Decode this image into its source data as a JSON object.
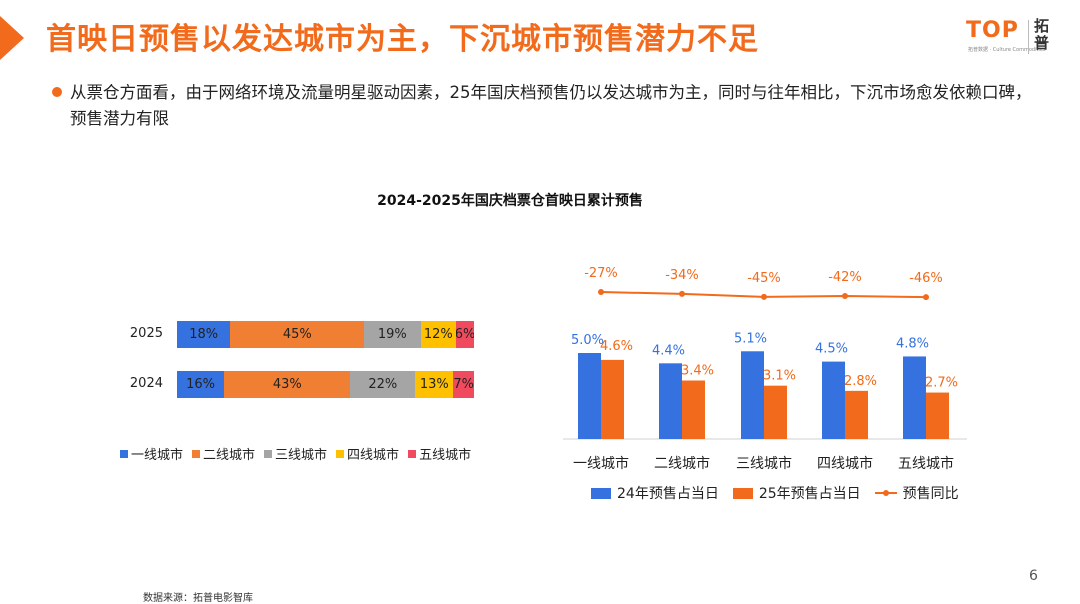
{
  "header": {
    "title": "首映日预售以发达城市为主，下沉城市预售潜力不足",
    "logo_text": "TOP",
    "logo_sub": "拓普数据 · Culture Commodities",
    "logo_cn": "拓普"
  },
  "bullet": {
    "text": "从票仓方面看，由于网络环境及流量明星驱动因素，25年国庆档预售仍以发达城市为主，同时与往年相比，下沉市场愈发依赖口碑，预售潜力有限"
  },
  "chart_title": "2024-2025年国庆档票仓首映日累计预售",
  "chart_data": [
    {
      "type": "bar",
      "orientation": "horizontal",
      "stacked": true,
      "percent": true,
      "categories": [
        "2025",
        "2024"
      ],
      "series": [
        {
          "name": "一线城市",
          "color": "#3572e0",
          "values": [
            18,
            16
          ]
        },
        {
          "name": "二线城市",
          "color": "#f07f34",
          "values": [
            45,
            43
          ]
        },
        {
          "name": "三线城市",
          "color": "#a5a5a5",
          "values": [
            19,
            22
          ]
        },
        {
          "name": "四线城市",
          "color": "#ffc000",
          "values": [
            12,
            13
          ]
        },
        {
          "name": "五线城市",
          "color": "#f04a5e",
          "values": [
            6,
            7
          ]
        }
      ],
      "legend_position": "bottom"
    },
    {
      "type": "bar",
      "categories": [
        "一线城市",
        "二线城市",
        "三线城市",
        "四线城市",
        "五线城市"
      ],
      "series": [
        {
          "name": "24年预售占当日",
          "color": "#3572e0",
          "values": [
            5.0,
            4.4,
            5.1,
            4.5,
            4.8
          ],
          "labels": [
            "5.0%",
            "4.4%",
            "5.1%",
            "4.5%",
            "4.8%"
          ]
        },
        {
          "name": "25年预售占当日",
          "color": "#f26a1b",
          "values": [
            4.6,
            3.4,
            3.1,
            2.8,
            2.7
          ],
          "labels": [
            "4.6%",
            "3.4%",
            "3.1%",
            "2.8%",
            "2.7%"
          ]
        },
        {
          "name": "预售同比",
          "type": "line",
          "color": "#f26a1b",
          "values": [
            -27,
            -34,
            -45,
            -42,
            -46
          ],
          "labels": [
            "-27%",
            "-34%",
            "-45%",
            "-42%",
            "-46%"
          ]
        }
      ],
      "legend_position": "bottom"
    }
  ],
  "footer": {
    "source": "数据来源：拓普电影智库",
    "page": "6"
  }
}
